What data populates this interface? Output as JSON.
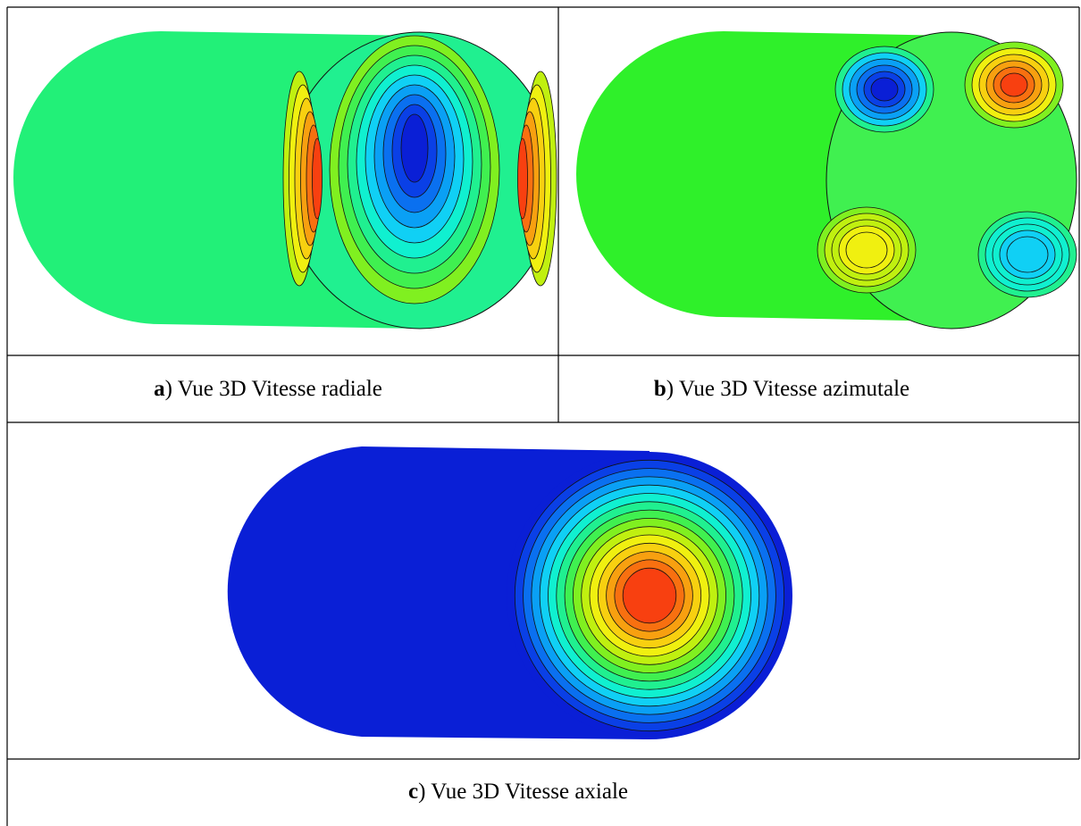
{
  "figure": {
    "panels": [
      {
        "letter": "a",
        "text": ") Vue 3D Vitesse radiale"
      },
      {
        "letter": "b",
        "text": ") Vue 3D Vitesse azimutale"
      },
      {
        "letter": "c",
        "text": ") Vue 3D Vitesse axiale"
      }
    ]
  }
}
